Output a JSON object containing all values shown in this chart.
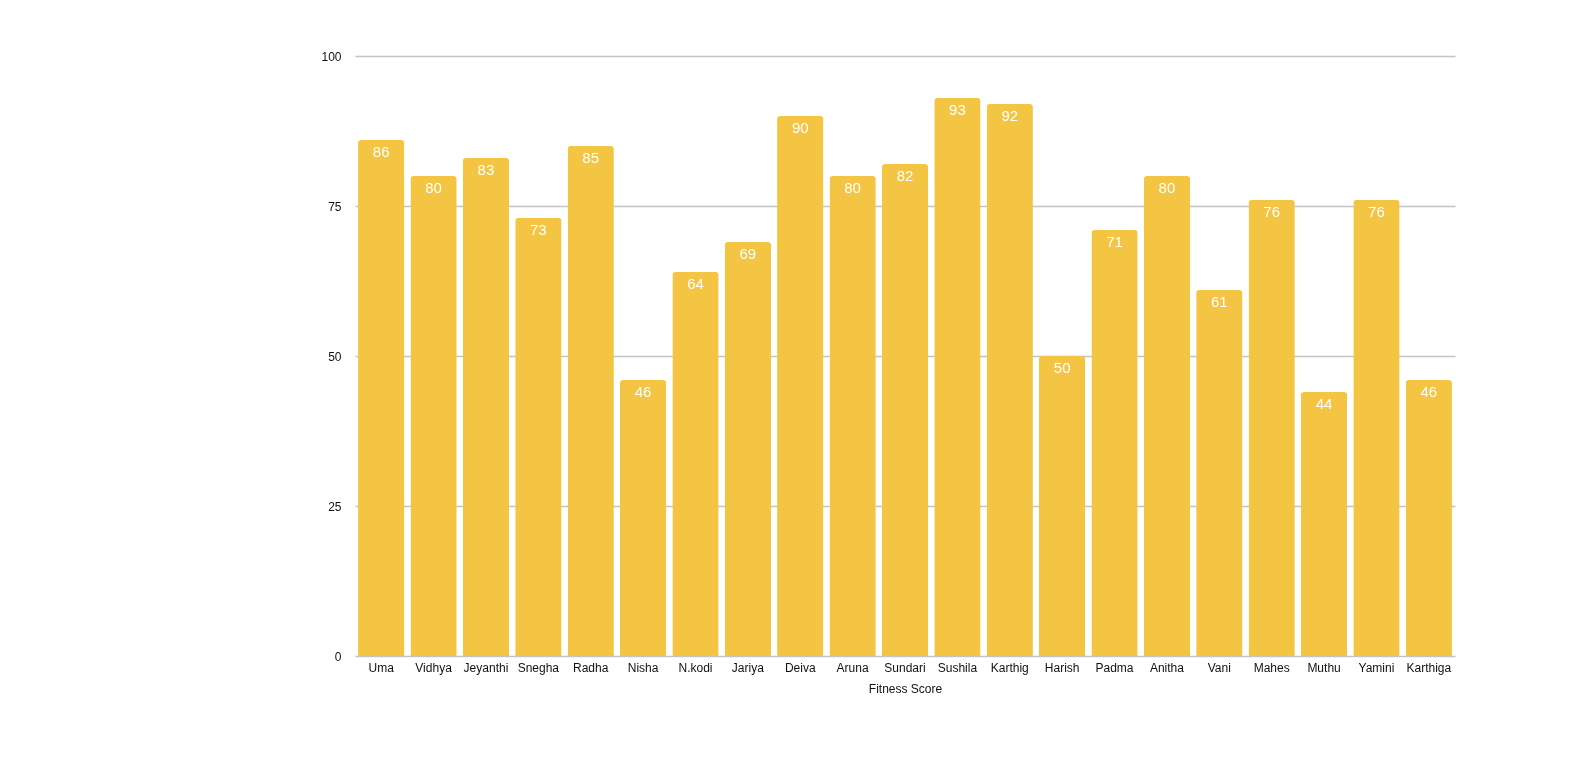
{
  "chart_data": {
    "type": "bar",
    "xlabel": "Fitness Score",
    "categories": [
      "Uma",
      "Vidhya",
      "Jeyanthi",
      "Snegha",
      "Radha",
      "Nisha",
      "N.kodi",
      "Jariya",
      "Deiva",
      "Aruna",
      "Sundari",
      "Sushila",
      "Karthig",
      "Harish",
      "Padma",
      "Anitha",
      "Vani",
      "Mahes",
      "Muthu",
      "Yamini",
      "Karthiga"
    ],
    "values": [
      86,
      80,
      83,
      73,
      85,
      46,
      64,
      69,
      90,
      80,
      82,
      93,
      92,
      50,
      71,
      80,
      61,
      76,
      44,
      76,
      46
    ],
    "color": "#f4c542",
    "ylim": [
      0,
      100
    ],
    "yticks": [
      0,
      25,
      50,
      75,
      100
    ],
    "grid": "y",
    "data_labels": true
  }
}
